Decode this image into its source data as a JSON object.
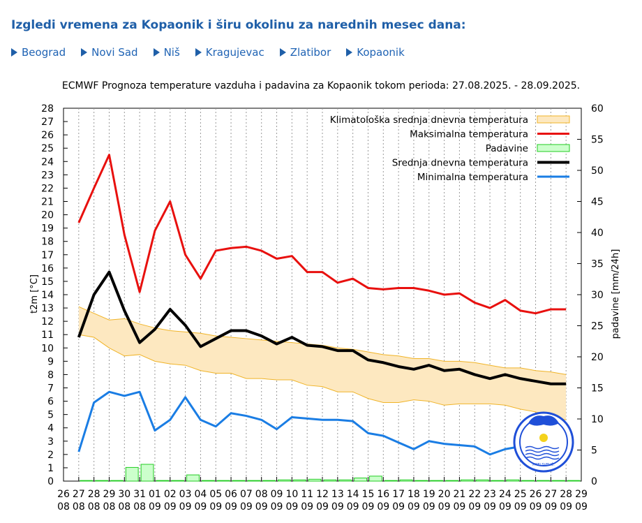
{
  "page": {
    "heading": "Izgledi vremena za Kopaonik i širu okolinu za narednih mesec dana:",
    "cities": [
      {
        "label": "Beograd",
        "slug": "beograd"
      },
      {
        "label": "Novi Sad",
        "slug": "novi-sad"
      },
      {
        "label": "Niš",
        "slug": "nis"
      },
      {
        "label": "Kragujevac",
        "slug": "kragujevac"
      },
      {
        "label": "Zlatibor",
        "slug": "zlatibor"
      },
      {
        "label": "Kopaonik",
        "slug": "kopaonik"
      }
    ],
    "accent_color": "#1f5fa8"
  },
  "chart_data": {
    "type": "line",
    "title": "ECMWF Prognoza temperature vazduha i padavina za Kopaonik tokom perioda: 27.08.2025. - 28.09.2025.",
    "ylabel": "t2m [°C]",
    "y2label": "padavine [mm/24h]",
    "ylim": [
      0,
      28
    ],
    "y2lim": [
      0,
      60
    ],
    "yticks": [
      0,
      1,
      2,
      3,
      4,
      5,
      6,
      7,
      8,
      9,
      10,
      11,
      12,
      13,
      14,
      15,
      16,
      17,
      18,
      19,
      20,
      21,
      22,
      23,
      24,
      25,
      26,
      27,
      28
    ],
    "y2ticks": [
      0,
      5,
      10,
      15,
      20,
      25,
      30,
      35,
      40,
      45,
      50,
      55,
      60
    ],
    "x_ticks": [
      {
        "day": "26",
        "month": "08"
      },
      {
        "day": "27",
        "month": "08"
      },
      {
        "day": "28",
        "month": "08"
      },
      {
        "day": "29",
        "month": "08"
      },
      {
        "day": "30",
        "month": "08"
      },
      {
        "day": "31",
        "month": "08"
      },
      {
        "day": "01",
        "month": "09"
      },
      {
        "day": "02",
        "month": "09"
      },
      {
        "day": "03",
        "month": "09"
      },
      {
        "day": "04",
        "month": "09"
      },
      {
        "day": "05",
        "month": "09"
      },
      {
        "day": "06",
        "month": "09"
      },
      {
        "day": "07",
        "month": "09"
      },
      {
        "day": "08",
        "month": "09"
      },
      {
        "day": "09",
        "month": "09"
      },
      {
        "day": "10",
        "month": "09"
      },
      {
        "day": "11",
        "month": "09"
      },
      {
        "day": "12",
        "month": "09"
      },
      {
        "day": "13",
        "month": "09"
      },
      {
        "day": "14",
        "month": "09"
      },
      {
        "day": "15",
        "month": "09"
      },
      {
        "day": "16",
        "month": "09"
      },
      {
        "day": "17",
        "month": "09"
      },
      {
        "day": "18",
        "month": "09"
      },
      {
        "day": "19",
        "month": "09"
      },
      {
        "day": "20",
        "month": "09"
      },
      {
        "day": "21",
        "month": "09"
      },
      {
        "day": "22",
        "month": "09"
      },
      {
        "day": "23",
        "month": "09"
      },
      {
        "day": "24",
        "month": "09"
      },
      {
        "day": "25",
        "month": "09"
      },
      {
        "day": "26",
        "month": "09"
      },
      {
        "day": "27",
        "month": "09"
      },
      {
        "day": "28",
        "month": "09"
      },
      {
        "day": "29",
        "month": "09"
      }
    ],
    "series_x": [
      1,
      2,
      3,
      4,
      5,
      6,
      7,
      8,
      9,
      10,
      11,
      12,
      13,
      14,
      15,
      16,
      17,
      18,
      19,
      20,
      21,
      22,
      23,
      24,
      25,
      26,
      27,
      28,
      29,
      30,
      31,
      32,
      33
    ],
    "legend": [
      {
        "label": "Klimatološka srednja dnevna temperatura",
        "key": "clim"
      },
      {
        "label": "Maksimalna temperatura",
        "key": "max"
      },
      {
        "label": "Padavine",
        "key": "precip"
      },
      {
        "label": "Srednja dnevna temperatura",
        "key": "mean"
      },
      {
        "label": "Minimalna temperatura",
        "key": "min"
      }
    ],
    "legend_position": "top-right",
    "colors": {
      "max": "#e8100e",
      "mean": "#000000",
      "min": "#1a7de4",
      "clim_fill": "#fde8c0",
      "clim_edge": "#f0b428",
      "precip_fill": "#ccffcc",
      "precip_edge": "#22cc22"
    },
    "series": {
      "max": [
        19.4,
        22.0,
        24.5,
        18.5,
        14.2,
        18.8,
        21.0,
        17.0,
        15.2,
        17.3,
        17.5,
        17.6,
        17.3,
        16.7,
        16.9,
        15.7,
        15.7,
        14.9,
        15.2,
        14.5,
        14.4,
        14.5,
        14.5,
        14.3,
        14.0,
        14.1,
        13.4,
        13.0,
        13.6,
        12.8,
        12.6,
        12.9,
        12.9
      ],
      "mean": [
        10.8,
        14.0,
        15.7,
        12.8,
        10.4,
        11.4,
        12.9,
        11.7,
        10.1,
        10.7,
        11.3,
        11.3,
        10.9,
        10.3,
        10.8,
        10.2,
        10.1,
        9.8,
        9.8,
        9.1,
        8.9,
        8.6,
        8.4,
        8.7,
        8.3,
        8.4,
        8.0,
        7.7,
        8.0,
        7.7,
        7.5,
        7.3,
        7.3
      ],
      "min": [
        2.2,
        5.9,
        6.7,
        6.4,
        6.7,
        3.8,
        4.6,
        6.3,
        4.6,
        4.1,
        5.1,
        4.9,
        4.6,
        3.9,
        4.8,
        4.7,
        4.6,
        4.6,
        4.5,
        3.6,
        3.4,
        2.9,
        2.4,
        3.0,
        2.8,
        2.7,
        2.6,
        2.0,
        2.4,
        2.6,
        2.3,
        2.5,
        2.2
      ],
      "clim_upper": [
        13.1,
        12.6,
        12.1,
        12.2,
        11.8,
        11.5,
        11.3,
        11.2,
        11.1,
        10.9,
        10.8,
        10.7,
        10.6,
        10.5,
        10.4,
        10.3,
        10.2,
        10.0,
        9.9,
        9.7,
        9.5,
        9.4,
        9.2,
        9.2,
        9.0,
        9.0,
        8.9,
        8.7,
        8.5,
        8.5,
        8.3,
        8.2,
        8.0
      ],
      "clim_lower": [
        11.0,
        10.8,
        10.0,
        9.4,
        9.5,
        9.0,
        8.8,
        8.7,
        8.3,
        8.1,
        8.1,
        7.7,
        7.7,
        7.6,
        7.6,
        7.2,
        7.1,
        6.7,
        6.7,
        6.2,
        5.9,
        5.9,
        6.1,
        6.0,
        5.7,
        5.8,
        5.8,
        5.8,
        5.7,
        5.4,
        5.2,
        4.8,
        4.6
      ],
      "precip": [
        0.1,
        0.1,
        0.1,
        2.2,
        2.7,
        0.1,
        0.1,
        1.0,
        0.1,
        0.1,
        0.1,
        0.1,
        0.1,
        0.2,
        0.2,
        0.3,
        0.2,
        0.2,
        0.5,
        0.8,
        0.1,
        0.2,
        0.1,
        0.1,
        0.1,
        0.2,
        0.2,
        0.1,
        0.2,
        0.1,
        0.1,
        0.1,
        0.1
      ]
    },
    "grid": "vertical-dashed",
    "logo": {
      "text": "PMFI SVEUČ."
    }
  }
}
